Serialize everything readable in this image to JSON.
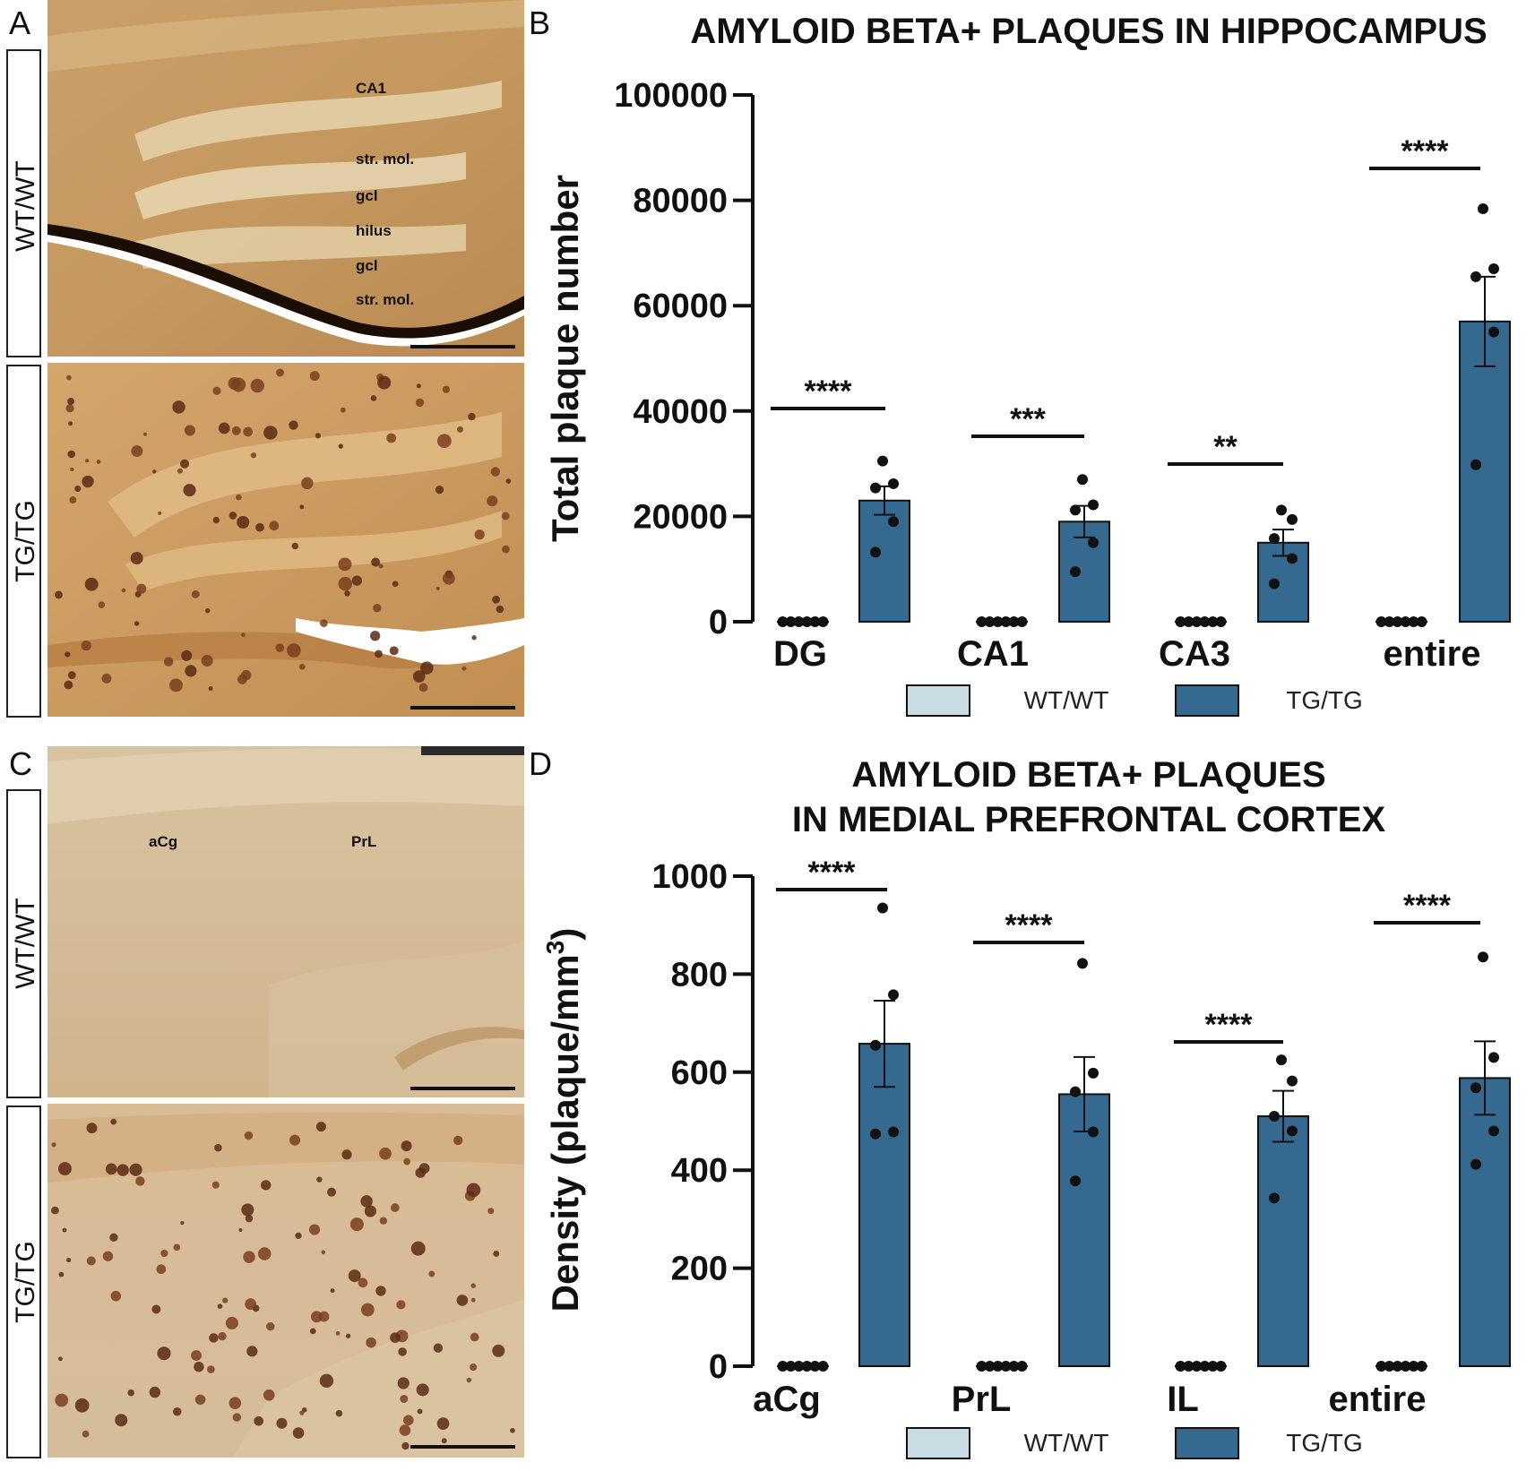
{
  "panels": {
    "A": {
      "letter": "A",
      "row_labels": [
        "WT/WT",
        "TG/TG"
      ],
      "annotations": [
        "CA1",
        "str. mol.",
        "gcl",
        "hilus",
        "gcl",
        "str. mol."
      ]
    },
    "C": {
      "letter": "C",
      "row_labels": [
        "WT/WT",
        "TG/TG"
      ],
      "annotations": [
        "aCg",
        "PrL"
      ]
    }
  },
  "chart_data": [
    {
      "letter": "B",
      "type": "bar",
      "title": [
        "AMYLOID BETA+ PLAQUES IN HIPPOCAMPUS"
      ],
      "ylabel": "Total plaque number",
      "ylabel_superscript": "",
      "ylim": [
        0,
        100000
      ],
      "yticks": [
        0,
        20000,
        40000,
        60000,
        80000,
        100000
      ],
      "categories": [
        "DG",
        "CA1",
        "CA3",
        "entire"
      ],
      "series": [
        {
          "name": "WT/WT",
          "color": "#c9dce3",
          "values": [
            0,
            0,
            0,
            0
          ],
          "sem": [
            0,
            0,
            0,
            0
          ],
          "points": [
            [
              0,
              0,
              0,
              0,
              0,
              0
            ],
            [
              0,
              0,
              0,
              0,
              0,
              0
            ],
            [
              0,
              0,
              0,
              0,
              0,
              0
            ],
            [
              0,
              0,
              0,
              0,
              0,
              0
            ]
          ]
        },
        {
          "name": "TG/TG",
          "color": "#35698f",
          "values": [
            23000,
            19000,
            15000,
            57000
          ],
          "sem": [
            2700,
            3000,
            2500,
            8500
          ],
          "points": [
            [
              30500,
              26200,
              25400,
              19000,
              13200
            ],
            [
              27000,
              22200,
              21200,
              15000,
              9500
            ],
            [
              21200,
              19400,
              15800,
              12000,
              7200
            ],
            [
              78400,
              67000,
              65500,
              55000,
              29800
            ]
          ]
        }
      ],
      "significance": [
        "****",
        "***",
        "**",
        "****"
      ],
      "legend": [
        "WT/WT",
        "TG/TG"
      ]
    },
    {
      "letter": "D",
      "type": "bar",
      "title": [
        "AMYLOID BETA+ PLAQUES",
        "IN MEDIAL PREFRONTAL CORTEX"
      ],
      "ylabel": "Density  (plaque/mm",
      "ylabel_superscript": "3",
      "ylabel_suffix": ")",
      "ylim": [
        0,
        1000
      ],
      "yticks": [
        0,
        200,
        400,
        600,
        800,
        1000
      ],
      "categories": [
        "aCg",
        "PrL",
        "IL",
        "entire"
      ],
      "series": [
        {
          "name": "WT/WT",
          "color": "#c9dce3",
          "values": [
            0,
            0,
            0,
            0
          ],
          "sem": [
            0,
            0,
            0,
            0
          ],
          "points": [
            [
              0,
              0,
              0,
              0,
              0,
              0
            ],
            [
              0,
              0,
              0,
              0,
              0,
              0
            ],
            [
              0,
              0,
              0,
              0,
              0,
              0
            ],
            [
              0,
              0,
              0,
              0,
              0,
              0
            ]
          ]
        },
        {
          "name": "TG/TG",
          "color": "#35698f",
          "values": [
            658,
            555,
            510,
            588
          ],
          "sem": [
            88,
            76,
            52,
            75
          ],
          "points": [
            [
              935,
              758,
              655,
              478,
              474
            ],
            [
              822,
              598,
              560,
              478,
              378
            ],
            [
              625,
              582,
              510,
              480,
              343
            ],
            [
              835,
              630,
              568,
              480,
              412
            ]
          ]
        }
      ],
      "significance": [
        "****",
        "****",
        "****",
        "****"
      ],
      "legend": [
        "WT/WT",
        "TG/TG"
      ]
    }
  ]
}
